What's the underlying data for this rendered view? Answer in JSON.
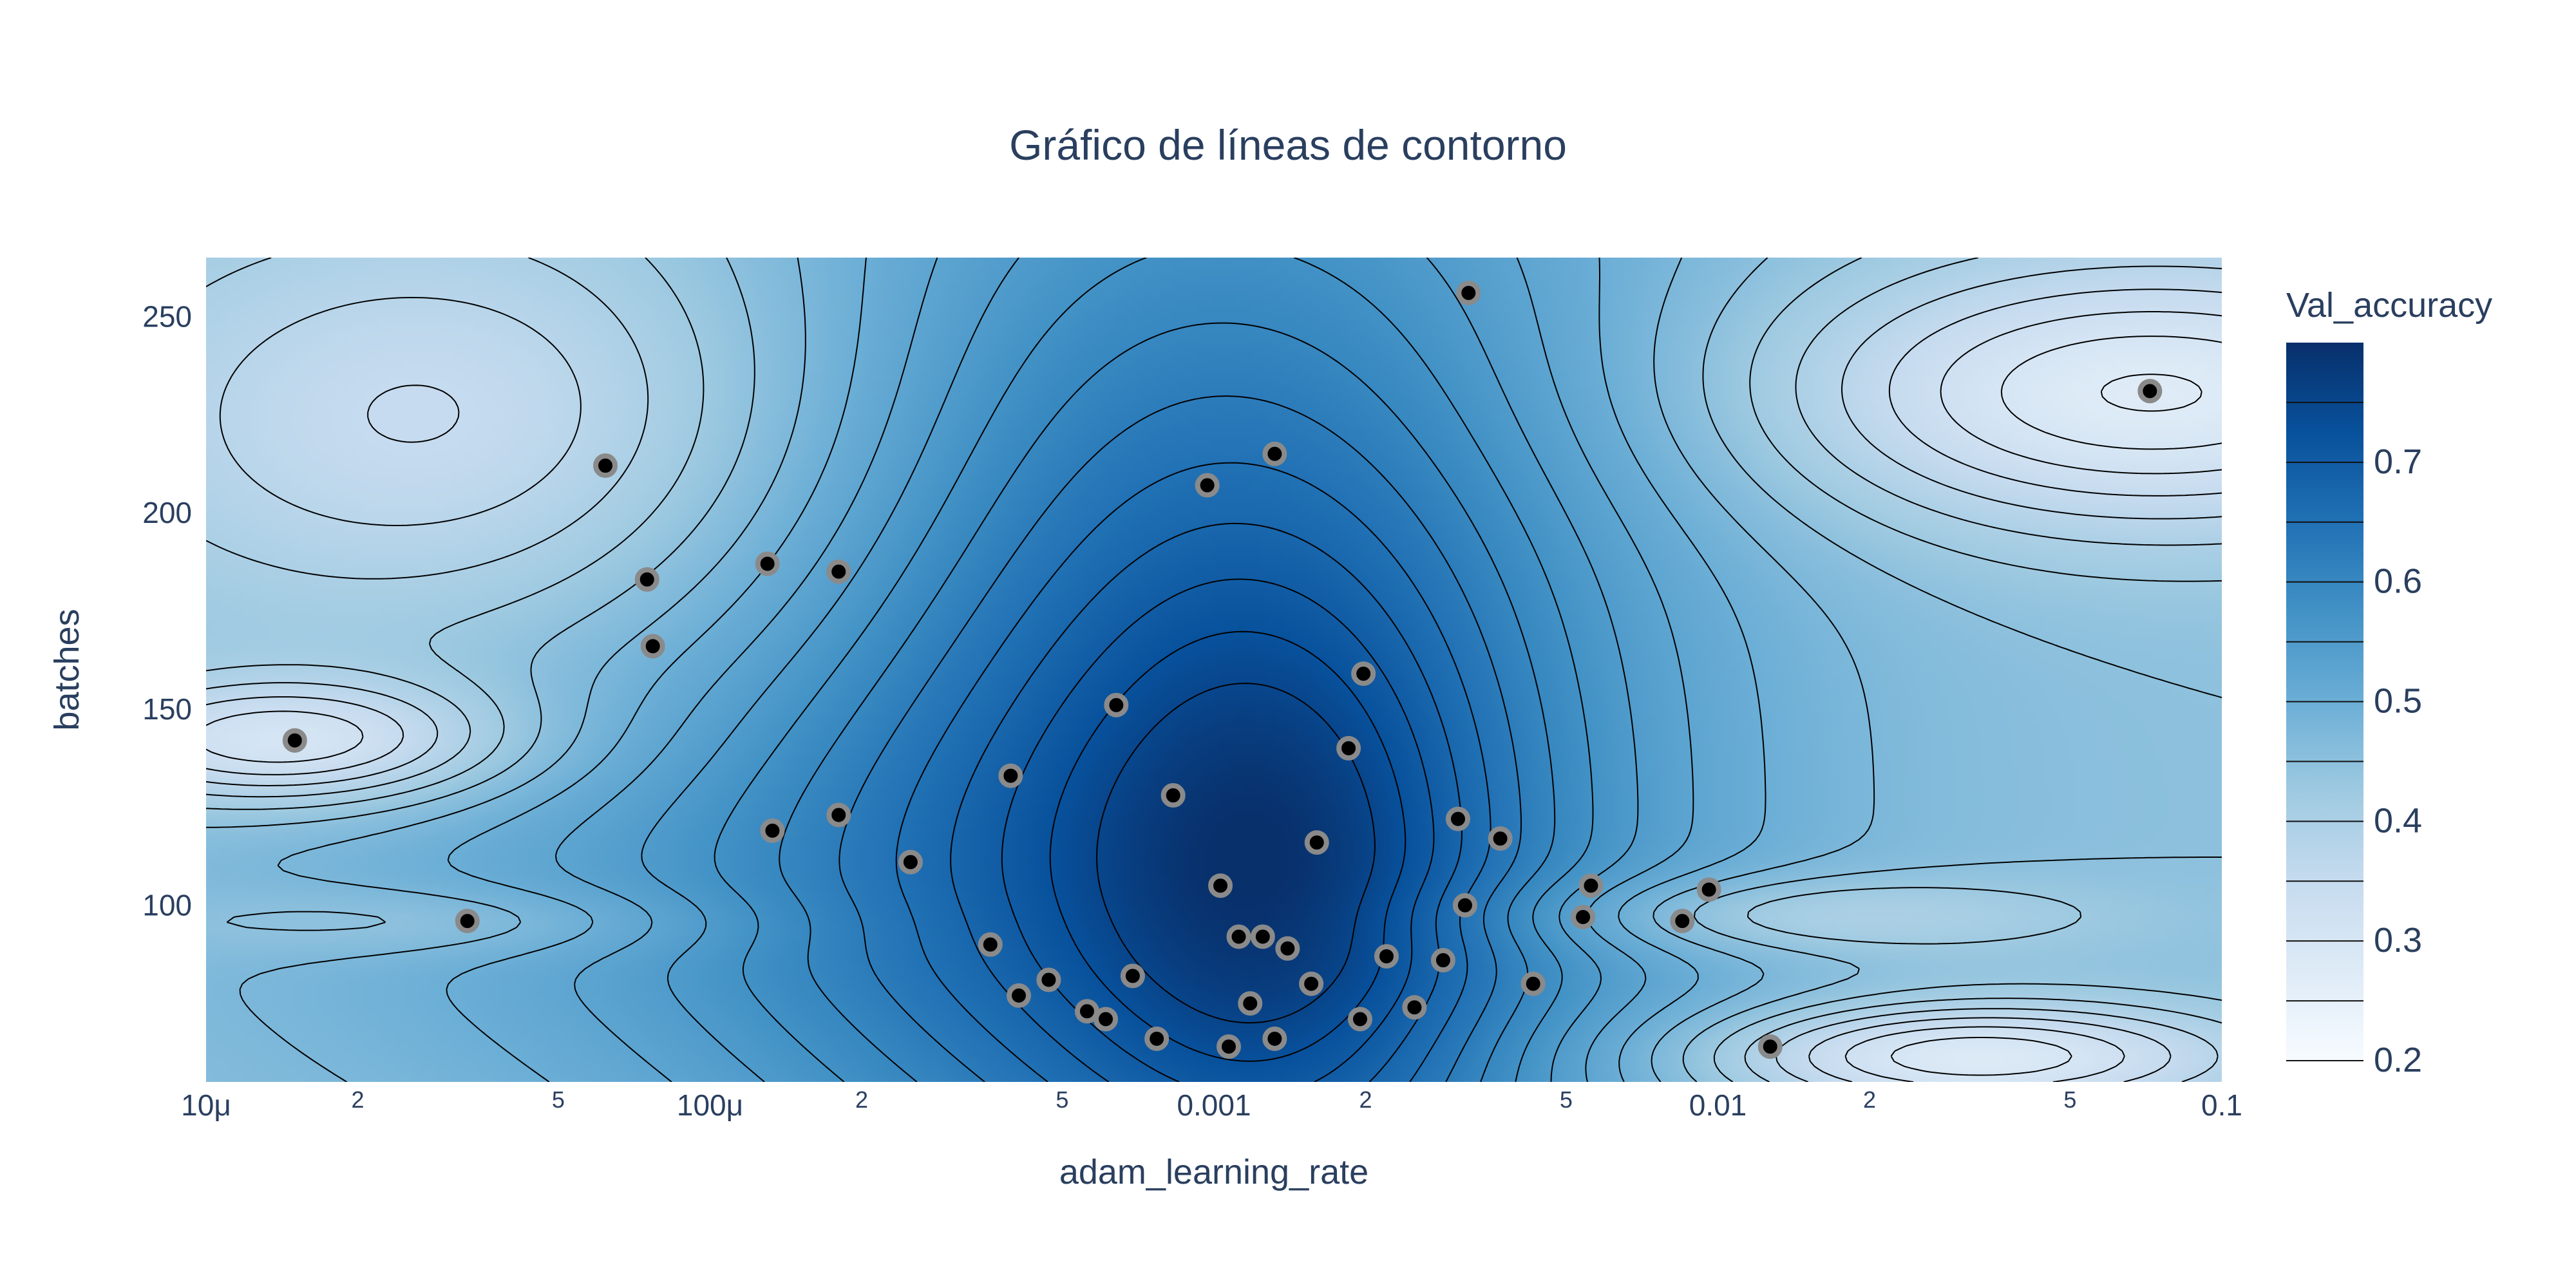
{
  "chart_data": {
    "type": "contour",
    "title": "Gráfico de líneas de contorno",
    "xlabel": "adam_learning_rate",
    "ylabel": "batches",
    "x_scale": "log",
    "xlim": [
      1e-05,
      0.1
    ],
    "ylim": [
      55,
      265
    ],
    "x_ticks": [
      {
        "value": 1e-05,
        "label": "10μ",
        "minor": false
      },
      {
        "value": 2e-05,
        "label": "2",
        "minor": true
      },
      {
        "value": 5e-05,
        "label": "5",
        "minor": true
      },
      {
        "value": 0.0001,
        "label": "100μ",
        "minor": false
      },
      {
        "value": 0.0002,
        "label": "2",
        "minor": true
      },
      {
        "value": 0.0005,
        "label": "5",
        "minor": true
      },
      {
        "value": 0.001,
        "label": "0.001",
        "minor": false
      },
      {
        "value": 0.002,
        "label": "2",
        "minor": true
      },
      {
        "value": 0.005,
        "label": "5",
        "minor": true
      },
      {
        "value": 0.01,
        "label": "0.01",
        "minor": false
      },
      {
        "value": 0.02,
        "label": "2",
        "minor": true
      },
      {
        "value": 0.05,
        "label": "5",
        "minor": true
      },
      {
        "value": 0.1,
        "label": "0.1",
        "minor": false
      }
    ],
    "y_ticks": [
      {
        "value": 100,
        "label": "100"
      },
      {
        "value": 150,
        "label": "150"
      },
      {
        "value": 200,
        "label": "200"
      },
      {
        "value": 250,
        "label": "250"
      }
    ],
    "colorbar": {
      "title": "Val_accuracy",
      "range": [
        0.2,
        0.8
      ],
      "ticks": [
        {
          "value": 0.2,
          "label": "0.2"
        },
        {
          "value": 0.3,
          "label": "0.3"
        },
        {
          "value": 0.4,
          "label": "0.4"
        },
        {
          "value": 0.5,
          "label": "0.5"
        },
        {
          "value": 0.6,
          "label": "0.6"
        },
        {
          "value": 0.7,
          "label": "0.7"
        }
      ],
      "colorscale": [
        "#f7fbff",
        "#deebf7",
        "#c6dbef",
        "#9ecae1",
        "#6baed6",
        "#4292c6",
        "#2171b5",
        "#08519c",
        "#08306b"
      ]
    },
    "points": [
      {
        "x": 1.5e-05,
        "y": 142
      },
      {
        "x": 3.3e-05,
        "y": 96
      },
      {
        "x": 6.2e-05,
        "y": 212
      },
      {
        "x": 7.5e-05,
        "y": 183
      },
      {
        "x": 7.7e-05,
        "y": 166
      },
      {
        "x": 0.00013,
        "y": 187
      },
      {
        "x": 0.000133,
        "y": 119
      },
      {
        "x": 0.00018,
        "y": 185
      },
      {
        "x": 0.00018,
        "y": 123
      },
      {
        "x": 0.00025,
        "y": 111
      },
      {
        "x": 0.00036,
        "y": 90
      },
      {
        "x": 0.000395,
        "y": 133
      },
      {
        "x": 0.00041,
        "y": 77
      },
      {
        "x": 0.00047,
        "y": 81
      },
      {
        "x": 0.00056,
        "y": 73
      },
      {
        "x": 0.00061,
        "y": 71
      },
      {
        "x": 0.00064,
        "y": 151
      },
      {
        "x": 0.00069,
        "y": 82
      },
      {
        "x": 0.00077,
        "y": 66
      },
      {
        "x": 0.00083,
        "y": 128
      },
      {
        "x": 0.00097,
        "y": 207
      },
      {
        "x": 0.00103,
        "y": 105
      },
      {
        "x": 0.00107,
        "y": 64
      },
      {
        "x": 0.00112,
        "y": 92
      },
      {
        "x": 0.00118,
        "y": 75
      },
      {
        "x": 0.00125,
        "y": 92
      },
      {
        "x": 0.00132,
        "y": 215
      },
      {
        "x": 0.00132,
        "y": 66
      },
      {
        "x": 0.0014,
        "y": 89
      },
      {
        "x": 0.00156,
        "y": 80
      },
      {
        "x": 0.0016,
        "y": 116
      },
      {
        "x": 0.00185,
        "y": 140
      },
      {
        "x": 0.00195,
        "y": 71
      },
      {
        "x": 0.00198,
        "y": 159
      },
      {
        "x": 0.0022,
        "y": 87
      },
      {
        "x": 0.0025,
        "y": 74
      },
      {
        "x": 0.00285,
        "y": 86
      },
      {
        "x": 0.00305,
        "y": 122
      },
      {
        "x": 0.00315,
        "y": 100
      },
      {
        "x": 0.0032,
        "y": 256
      },
      {
        "x": 0.0037,
        "y": 117
      },
      {
        "x": 0.0043,
        "y": 80
      },
      {
        "x": 0.0054,
        "y": 97
      },
      {
        "x": 0.0056,
        "y": 105
      },
      {
        "x": 0.0085,
        "y": 96
      },
      {
        "x": 0.0096,
        "y": 104
      },
      {
        "x": 0.0127,
        "y": 64
      },
      {
        "x": 0.072,
        "y": 231
      }
    ],
    "contour_levels": [
      0.225,
      0.25,
      0.275,
      0.3,
      0.325,
      0.35,
      0.375,
      0.4,
      0.425,
      0.45,
      0.475,
      0.5,
      0.525,
      0.55,
      0.575,
      0.6,
      0.625,
      0.65,
      0.675,
      0.7,
      0.725,
      0.75
    ]
  }
}
